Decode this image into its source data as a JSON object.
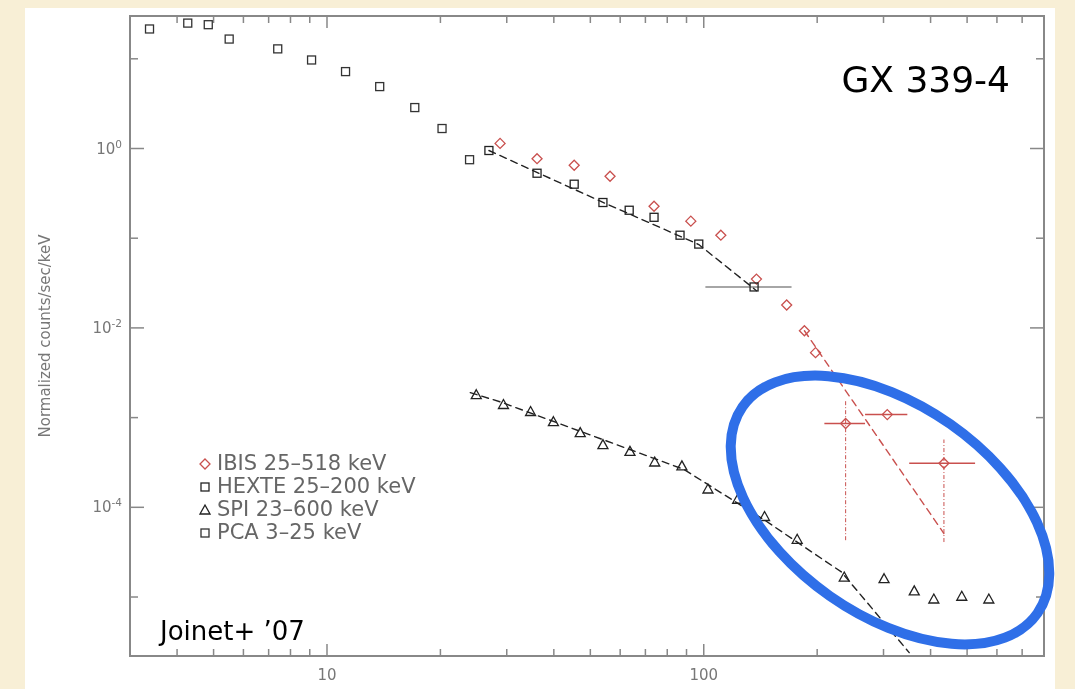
{
  "chart_data": {
    "type": "scatter",
    "ylabel": "Normalized counts/sec/keV",
    "log": "xy",
    "xlim": [
      3,
      800
    ],
    "ylim": [
      2.2e-06,
      30
    ],
    "xticks": [
      {
        "value": 4,
        "label": null
      },
      {
        "value": 5,
        "label": null
      },
      {
        "value": 6,
        "label": null
      },
      {
        "value": 7,
        "label": null
      },
      {
        "value": 8,
        "label": null
      },
      {
        "value": 9,
        "label": null
      },
      10,
      {
        "value": 20,
        "label": null
      },
      {
        "value": 30,
        "label": null
      },
      {
        "value": 40,
        "label": null
      },
      {
        "value": 50,
        "label": null
      },
      {
        "value": 60,
        "label": null
      },
      {
        "value": 70,
        "label": null
      },
      {
        "value": 80,
        "label": null
      },
      {
        "value": 90,
        "label": null
      },
      100,
      {
        "value": 200,
        "label": null
      },
      {
        "value": 300,
        "label": null
      },
      {
        "value": 400,
        "label": null
      },
      {
        "value": 500,
        "label": null
      },
      {
        "value": 600,
        "label": null
      },
      {
        "value": 700,
        "label": null
      }
    ],
    "yticks": [
      {
        "value": 1e-05,
        "label": null
      },
      {
        "value": 0.0001,
        "label": "10$^{-4}$"
      },
      {
        "value": 0.001,
        "label": null
      },
      {
        "value": 0.01,
        "label": "10$^{-2}$"
      },
      {
        "value": 0.1,
        "label": null
      },
      {
        "value": 1,
        "label": "10$^{0}$"
      },
      {
        "value": 10,
        "label": null
      }
    ],
    "legend": "bottom left",
    "annotations": [
      "GX 339-4",
      "Joinet+ ’07"
    ],
    "series": [
      {
        "name": "IBIS 25–518 keV",
        "color": "#c9504e",
        "marker": "diamond",
        "x": [
          28.8,
          36.1,
          45.3,
          56.4,
          73.8,
          92.4,
          111,
          138,
          166,
          185,
          198,
          238,
          307,
          434
        ],
        "values": [
          1.14,
          0.77,
          0.65,
          0.49,
          0.227,
          0.155,
          0.108,
          0.035,
          0.018,
          0.0093,
          0.0053,
          0.00086,
          0.00108,
          0.00031
        ],
        "errors": [
          null,
          null,
          null,
          null,
          null,
          null,
          null,
          null,
          null,
          null,
          null,
          [
            4.3e-05,
            0.0016
          ],
          null,
          [
            4.1e-05,
            0.00057
          ]
        ],
        "xerrors": [
          null,
          null,
          null,
          null,
          null,
          null,
          null,
          null,
          null,
          null,
          null,
          [
            209,
            268
          ],
          [
            268,
            347
          ],
          [
            351,
            525
          ]
        ]
      },
      {
        "name": "HEXTE 25–200 keV",
        "color": "#222222",
        "marker": "square",
        "x": [
          26.9,
          36.1,
          45.3,
          54,
          63.4,
          73.8,
          86.5,
          97,
          136
        ],
        "values": [
          0.95,
          0.53,
          0.4,
          0.25,
          0.205,
          0.171,
          0.108,
          0.086,
          0.0286
        ],
        "xerrors": [
          null,
          null,
          null,
          null,
          null,
          null,
          null,
          null,
          [
            101,
            171
          ]
        ]
      },
      {
        "name": "SPI 23–600 keV",
        "color": "#222222",
        "marker": "triangle",
        "x": [
          24.9,
          29.4,
          34.7,
          39.9,
          47,
          54,
          63.7,
          74.1,
          87.5,
          102.6,
          123,
          145,
          177,
          236,
          301,
          362,
          408,
          484,
          571
        ],
        "values": [
          0.0018,
          0.0014,
          0.00117,
          0.0009,
          0.00068,
          0.0005,
          0.00042,
          0.00032,
          0.00029,
          0.00016,
          0.000123,
          7.9e-05,
          4.4e-05,
          1.67e-05,
          1.6e-05,
          1.17e-05,
          9.5e-06,
          1.02e-05,
          9.5e-06
        ]
      },
      {
        "name": "PCA 3–25 keV",
        "color": "#333333",
        "marker": "square",
        "x": [
          3.38,
          4.27,
          4.84,
          5.5,
          7.4,
          9.1,
          11.2,
          13.8,
          17.1,
          20.2,
          23.9
        ],
        "values": [
          21.5,
          25,
          24,
          16.6,
          12.9,
          9.7,
          7.2,
          4.9,
          2.86,
          1.67,
          0.75
        ]
      },
      {
        "type": "line",
        "color": "#222222",
        "line_style": "dashed",
        "x": [
          26.9,
          53,
          97,
          138
        ],
        "values": [
          0.95,
          0.26,
          0.085,
          0.026
        ]
      },
      {
        "type": "line",
        "color": "#c9504e",
        "line_style": "dashed",
        "x": [
          185,
          434
        ],
        "values": [
          0.0093,
          5.1e-05
        ]
      },
      {
        "type": "line",
        "color": "#222222",
        "line_style": "dashed",
        "x": [
          24,
          28.8,
          88.5,
          145,
          232,
          351
        ],
        "values": [
          0.0019,
          0.0015,
          0.000265,
          7.2e-05,
          1.9e-05,
          2.4e-06
        ]
      }
    ]
  }
}
